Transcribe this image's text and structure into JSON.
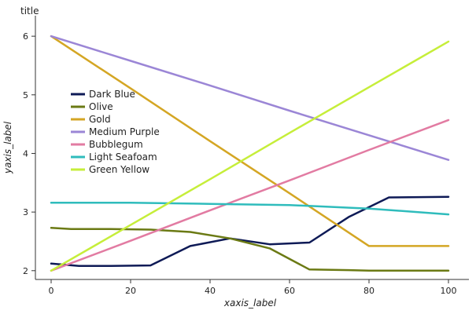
{
  "chart_data": {
    "type": "area",
    "title": "title",
    "xlabel": "xaxis_label",
    "ylabel": "yaxis_label",
    "xlim": [
      0,
      100
    ],
    "ylim": [
      1.85,
      6.35
    ],
    "x_ticks": [
      "0",
      "20",
      "40",
      "60",
      "80",
      "100"
    ],
    "y_ticks": [
      "2",
      "3",
      "4",
      "5",
      "6"
    ],
    "grid": false,
    "legend_position": "top-left",
    "series": [
      {
        "name": "Dark Blue",
        "color": "#0e1a56",
        "x": [
          0,
          7,
          15,
          25,
          35,
          45,
          55,
          65,
          75,
          85,
          100
        ],
        "y": [
          2.12,
          2.08,
          2.08,
          2.09,
          2.42,
          2.55,
          2.45,
          2.48,
          2.92,
          3.25,
          3.26
        ]
      },
      {
        "name": "Olive",
        "color": "#6b7a14",
        "x": [
          0,
          5,
          15,
          25,
          35,
          45,
          55,
          65,
          75,
          80,
          100
        ],
        "y": [
          2.73,
          2.71,
          2.71,
          2.7,
          2.66,
          2.55,
          2.38,
          2.02,
          2.01,
          2.0,
          2.0
        ]
      },
      {
        "name": "Gold",
        "color": "#d4a624",
        "x": [
          0,
          20,
          40,
          60,
          80,
          100
        ],
        "y": [
          6.0,
          5.11,
          4.21,
          3.32,
          2.42,
          2.42
        ]
      },
      {
        "name": "Medium Purple",
        "color": "#9b86d6",
        "x": [
          0,
          20,
          40,
          60,
          80,
          100
        ],
        "y": [
          6.0,
          5.58,
          5.16,
          4.73,
          4.31,
          3.89
        ]
      },
      {
        "name": "Bubblegum",
        "color": "#e27ba2",
        "x": [
          0,
          20,
          40,
          60,
          80,
          100
        ],
        "y": [
          2.0,
          2.51,
          3.03,
          3.54,
          4.06,
          4.57
        ]
      },
      {
        "name": "Light Seafoam",
        "color": "#2fbcbc",
        "x": [
          0,
          20,
          40,
          60,
          80,
          100
        ],
        "y": [
          3.16,
          3.16,
          3.14,
          3.12,
          3.06,
          2.96
        ]
      },
      {
        "name": "Green Yellow",
        "color": "#c6ee3a",
        "x": [
          0,
          20,
          40,
          60,
          80,
          100
        ],
        "y": [
          2.0,
          2.78,
          3.56,
          4.35,
          5.13,
          5.91
        ]
      }
    ]
  }
}
